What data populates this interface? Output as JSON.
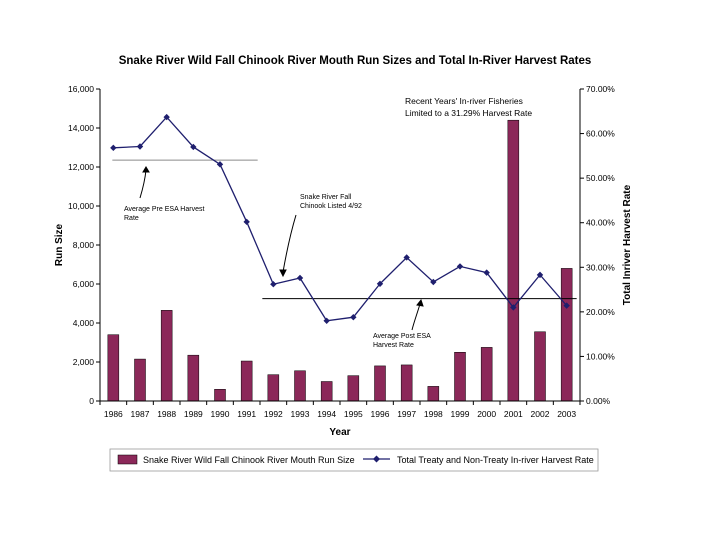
{
  "chart_data": {
    "type": "bar+line",
    "title": "Snake River Wild Fall Chinook River Mouth Run Sizes and Total In-River Harvest Rates",
    "xlabel": "Year",
    "ylabel_left": "Run Size",
    "ylabel_right": "Total Inriver Harvest Rate",
    "categories": [
      "1986",
      "1987",
      "1988",
      "1989",
      "1990",
      "1991",
      "1992",
      "1993",
      "1994",
      "1995",
      "1996",
      "1997",
      "1998",
      "1999",
      "2000",
      "2001",
      "2002",
      "2003"
    ],
    "ylim_left": [
      0,
      16000
    ],
    "ylim_right": [
      0,
      0.7
    ],
    "left_ticks": [
      "0",
      "2,000",
      "4,000",
      "6,000",
      "8,000",
      "10,000",
      "12,000",
      "14,000",
      "16,000"
    ],
    "right_ticks": [
      "0.00%",
      "10.00%",
      "20.00%",
      "30.00%",
      "40.00%",
      "50.00%",
      "60.00%",
      "70.00%"
    ],
    "series": [
      {
        "name": "Snake River Wild Fall Chinook River Mouth Run Size",
        "type": "bar",
        "axis": "left",
        "color": "#8b2859",
        "values": [
          3400,
          2150,
          4650,
          2350,
          600,
          2050,
          1350,
          1550,
          1000,
          1300,
          1800,
          1850,
          750,
          2500,
          2750,
          14400,
          3550,
          6800
        ]
      },
      {
        "name": "Total Treaty and Non-Treaty In-river Harvest Rate",
        "type": "line",
        "axis": "right",
        "color": "#1f1f6e",
        "values": [
          0.568,
          0.571,
          0.637,
          0.57,
          0.531,
          0.402,
          0.262,
          0.276,
          0.18,
          0.188,
          0.263,
          0.322,
          0.267,
          0.302,
          0.288,
          0.21,
          0.283,
          0.214
        ]
      }
    ],
    "reference_lines": [
      {
        "name": "Average Pre ESA Harvest Rate",
        "axis": "left",
        "value": 12350,
        "from": "1986",
        "to": "1991"
      },
      {
        "name": "Average Post ESA Harvest Rate",
        "axis": "left",
        "value": 5250,
        "from": "1992",
        "to": "2003"
      }
    ],
    "annotations": [
      {
        "text_lines": [
          "Recent Years' In-river Fisheries",
          "Limited to a 31.29% Harvest Rate"
        ]
      },
      {
        "text_lines": [
          "Snake River Fall",
          "Chinook Listed 4/92"
        ]
      },
      {
        "text_lines": [
          "Average Pre ESA Harvest",
          "Rate"
        ]
      },
      {
        "text_lines": [
          "Average Post ESA",
          "Harvest Rate"
        ]
      }
    ],
    "legend_position": "bottom"
  }
}
